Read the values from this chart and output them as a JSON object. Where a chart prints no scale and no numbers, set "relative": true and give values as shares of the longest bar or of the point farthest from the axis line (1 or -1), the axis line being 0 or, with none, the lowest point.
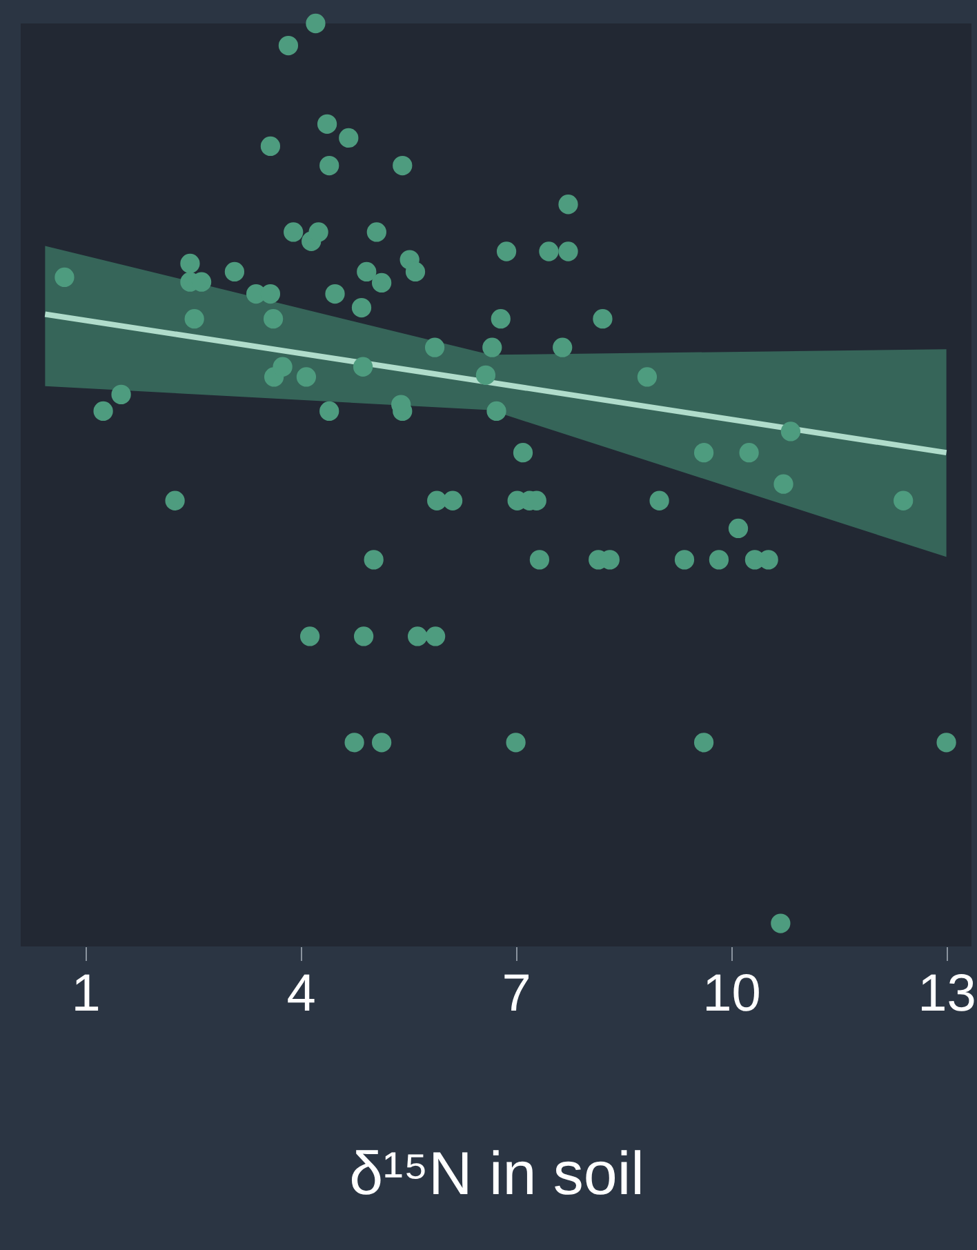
{
  "chart_data": {
    "type": "scatter",
    "xlabel": "δ¹⁵N in soil",
    "relative": true,
    "xlim": [
      0.1,
      13.35
    ],
    "xticks": [
      1,
      4,
      7,
      10,
      13
    ],
    "grid": false,
    "marker": "circle",
    "series": [
      {
        "color": "#4e9c7f",
        "x": [
          0.71,
          1.25,
          1.5,
          2.25,
          2.46,
          2.46,
          2.52,
          2.62,
          3.08,
          3.38,
          3.58,
          3.62,
          3.63,
          3.83,
          3.58,
          3.75,
          3.9,
          4.08,
          4.13,
          4.15,
          4.21,
          4.25,
          4.37,
          4.4,
          4.4,
          4.48,
          4.67,
          4.85,
          4.87,
          4.88,
          4.92,
          4.75,
          5.02,
          5.13,
          5.13,
          5.42,
          5.42,
          5.4,
          5.06,
          5.52,
          5.6,
          5.63,
          5.88,
          5.87,
          5.9,
          6.12,
          6.58,
          6.67,
          6.73,
          6.79,
          6.87,
          7.0,
          7.02,
          7.1,
          7.19,
          7.29,
          7.33,
          7.46,
          7.65,
          7.73,
          7.73,
          8.15,
          8.21,
          8.31,
          8.83,
          9.0,
          9.35,
          9.62,
          9.62,
          9.83,
          10.1,
          10.25,
          10.33,
          10.52,
          10.73,
          10.69,
          10.83,
          12.4,
          13.0
        ],
        "values": [
          0.725,
          0.58,
          0.598,
          0.483,
          0.74,
          0.72,
          0.68,
          0.72,
          0.731,
          0.707,
          0.707,
          0.68,
          0.617,
          0.976,
          0.867,
          0.628,
          0.774,
          0.617,
          0.336,
          0.764,
          1.0,
          0.774,
          0.891,
          0.846,
          0.58,
          0.707,
          0.876,
          0.692,
          0.628,
          0.336,
          0.731,
          0.221,
          0.419,
          0.221,
          0.719,
          0.846,
          0.58,
          0.587,
          0.774,
          0.744,
          0.731,
          0.336,
          0.336,
          0.649,
          0.483,
          0.483,
          0.619,
          0.649,
          0.58,
          0.68,
          0.753,
          0.221,
          0.483,
          0.535,
          0.483,
          0.483,
          0.419,
          0.753,
          0.649,
          0.804,
          0.753,
          0.419,
          0.68,
          0.419,
          0.617,
          0.483,
          0.419,
          0.221,
          0.535,
          0.419,
          0.453,
          0.535,
          0.419,
          0.419,
          0.501,
          0.025,
          0.558,
          0.483,
          0.221
        ]
      },
      {
        "type": "line",
        "color": "#b0dccb",
        "line_style": "solid",
        "marker": "none",
        "x": [
          0.44,
          6.65,
          13.0
        ],
        "values": [
          0.685,
          0.611,
          0.535
        ],
        "lower": [
          0.607,
          0.581,
          0.422
        ],
        "upper": [
          0.759,
          0.641,
          0.647
        ]
      }
    ]
  }
}
